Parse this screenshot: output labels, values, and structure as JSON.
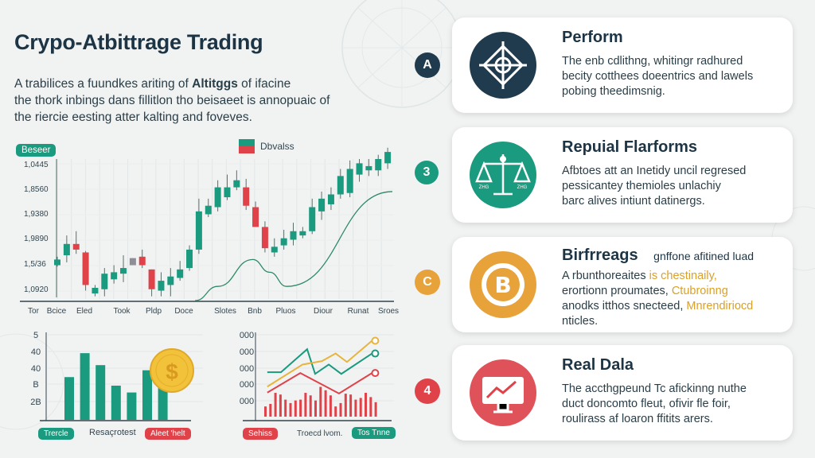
{
  "title": "Crypo-Atbittrage Trading",
  "intro": {
    "line1_a": "A trabilices a fuundkes ariting of ",
    "line1_bold": "Altitggs",
    "line1_b": " of ifacine",
    "line2": "the thork inbings dans fillitlon tho beisaeet is annopuaic of",
    "line3": "the riercie eesting atter kalting and foveves."
  },
  "colors": {
    "teal": "#1a9a7e",
    "red": "#e0424a",
    "navy": "#1f3b4d",
    "orange": "#e8a23a",
    "gray": "#8e8e96"
  },
  "chart_data": [
    {
      "type": "candlestick",
      "badge": "Beseer",
      "legend": "Dbvalss",
      "yticks": [
        "1,0445",
        "1,8560",
        "1,9380",
        "1,9890",
        "1,5/36",
        "1,0920"
      ],
      "xticks": [
        "Tor",
        "Bcice",
        "Eled",
        "Took",
        "Pldp",
        "Doce",
        "Slotes",
        "Bnb",
        "Pluos",
        "Diour",
        "Runat",
        "Sroes"
      ],
      "ylim": [
        0,
        110
      ],
      "grid": true,
      "candles": [
        [
          25,
          29,
          31,
          24
        ],
        [
          32,
          40,
          46,
          27
        ],
        [
          40,
          36,
          49,
          33
        ],
        [
          34,
          11,
          35,
          7
        ],
        [
          5,
          9,
          11,
          3
        ],
        [
          8,
          19,
          23,
          3
        ],
        [
          15,
          20,
          25,
          12
        ],
        [
          19,
          23,
          32,
          13
        ],
        [
          25,
          30,
          30,
          25
        ],
        [
          31,
          25,
          36,
          23
        ],
        [
          22,
          8,
          22,
          3
        ],
        [
          7,
          14,
          20,
          3
        ],
        [
          11,
          17,
          23,
          3
        ],
        [
          16,
          22,
          28,
          14
        ],
        [
          23,
          36,
          39,
          21
        ],
        [
          36,
          63,
          72,
          33
        ],
        [
          61,
          67,
          72,
          59
        ],
        [
          66,
          80,
          85,
          63
        ],
        [
          73,
          80,
          89,
          71
        ],
        [
          80,
          85,
          92,
          78
        ],
        [
          80,
          67,
          86,
          64
        ],
        [
          66,
          52,
          70,
          52
        ],
        [
          52,
          37,
          56,
          34
        ],
        [
          34,
          38,
          44,
          31
        ],
        [
          39,
          44,
          50,
          36
        ],
        [
          43,
          49,
          55,
          39
        ],
        [
          46,
          49,
          52,
          44
        ],
        [
          49,
          66,
          72,
          47
        ],
        [
          63,
          72,
          77,
          57
        ],
        [
          68,
          75,
          80,
          64
        ],
        [
          75,
          88,
          93,
          72
        ],
        [
          76,
          93,
          99,
          73
        ],
        [
          89,
          97,
          100,
          84
        ],
        [
          92,
          95,
          100,
          88
        ],
        [
          92,
          100,
          103,
          88
        ],
        [
          97,
          105,
          108,
          93
        ]
      ],
      "neutral_candle": 8,
      "trend_line": [
        [
          14.6,
          0
        ],
        [
          17,
          10
        ],
        [
          20.7,
          29
        ],
        [
          22.5,
          20
        ],
        [
          24.3,
          10
        ],
        [
          35.5,
          77
        ]
      ]
    },
    {
      "type": "bar",
      "yticks": [
        "5",
        "40",
        "40",
        "B",
        "2B"
      ],
      "ylim": [
        0,
        50
      ],
      "values": [
        25,
        39,
        32,
        20,
        16,
        29,
        22
      ],
      "labels": {
        "left": "Trercle",
        "middle": "Resaçrotest",
        "right": "Aleet 'helt"
      }
    },
    {
      "type": "line",
      "yticks": [
        "000",
        "000",
        "000",
        "000",
        "000"
      ],
      "ylim": [
        0,
        100
      ],
      "xlim": [
        0,
        100
      ],
      "series": [
        {
          "color": "#1a9a7e",
          "points": [
            [
              2,
              56
            ],
            [
              14,
              56
            ],
            [
              37,
              83
            ],
            [
              44,
              54
            ],
            [
              56,
              65
            ],
            [
              67,
              54
            ],
            [
              94,
              78
            ]
          ]
        },
        {
          "color": "#e8b43a",
          "points": [
            [
              2,
              39
            ],
            [
              33,
              65
            ],
            [
              50,
              69
            ],
            [
              62,
              78
            ],
            [
              72,
              68
            ],
            [
              94,
              93
            ]
          ]
        },
        {
          "color": "#e0424a",
          "points": [
            [
              2,
              32
            ],
            [
              31,
              55
            ],
            [
              65,
              31
            ],
            [
              94,
              55
            ]
          ]
        }
      ],
      "bars": [
        12,
        15,
        28,
        26,
        20,
        16,
        19,
        20,
        28,
        25,
        19,
        35,
        31,
        25,
        12,
        16,
        27,
        26,
        20,
        22,
        28,
        23,
        17
      ],
      "labels": {
        "left": "Sehiss",
        "middle": "Troecd lvom.",
        "right": "Tos Tnne"
      }
    }
  ],
  "cards": [
    {
      "badge": "A",
      "icon": "diamond-target-icon",
      "title": "Perform",
      "lines": [
        "The enb cdlithng, whitingr radhured",
        "becity cotthees doeentrics and lawels",
        "pobing theedimsnig."
      ]
    },
    {
      "badge": "3",
      "icon": "scales-icon",
      "title": "Repuial Flarforms",
      "lines": [
        "Afbtoes att an Inetidy uncil regresed",
        "pessicantey themioles unlachiy",
        "barc alives intiunt datinergs."
      ],
      "scale_labels": [
        "ZHG",
        "ZHG"
      ]
    },
    {
      "badge": "C",
      "icon": "bitcoin-icon",
      "title": "Birfrreags",
      "subtitle": "gnffone afitined luad",
      "l1a": "A rbunthoreaites ",
      "l1b": "is chestinaily,",
      "l2a": "erortionn proumates, ",
      "l2b": "Ctubroinng",
      "l3a": "anodks itthos snecteed, ",
      "l3b": "Mnrendiriocd",
      "l4": "nticles."
    },
    {
      "badge": "4",
      "icon": "monitor-chart-icon",
      "title": "Real Dala",
      "lines": [
        "The accthgpeund Tc afickinng nuthe",
        "duct doncomto fleut, ofivir fle foir,",
        "roulirass af loaron ffitits arers."
      ]
    }
  ]
}
